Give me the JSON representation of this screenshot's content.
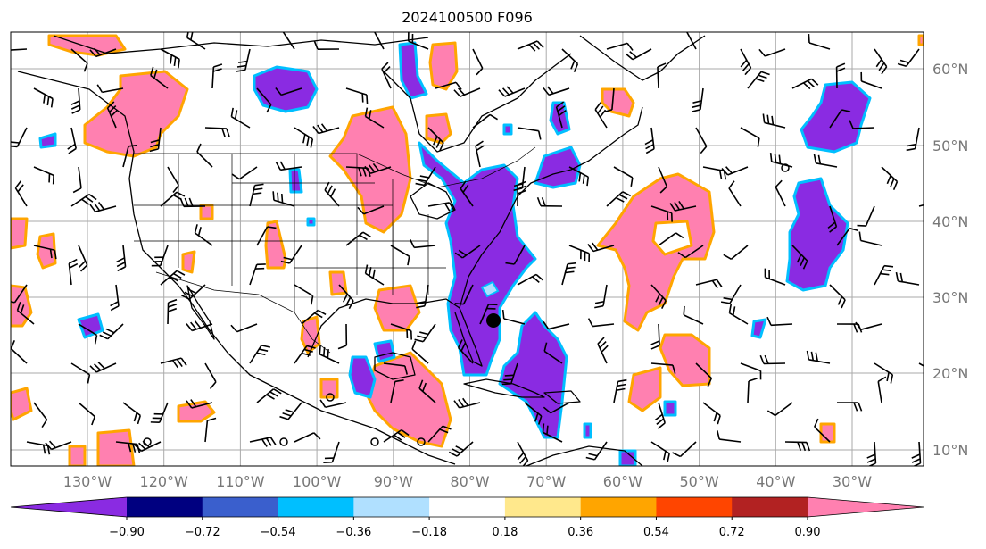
{
  "title": "2024100500 F096",
  "lat_ticks": [
    "60°N",
    "50°N",
    "40°N",
    "30°N",
    "20°N",
    "10°N"
  ],
  "lon_ticks": [
    "130°W",
    "120°W",
    "110°W",
    "100°W",
    "90°W",
    "80°W",
    "70°W",
    "60°W",
    "50°W",
    "40°W",
    "30°W"
  ],
  "colorbar": {
    "tick_labels": [
      "−0.90",
      "−0.72",
      "−0.54",
      "−0.36",
      "−0.18",
      "0.18",
      "0.36",
      "0.54",
      "0.72",
      "0.90"
    ],
    "colors": [
      "#8a2be2",
      "#000080",
      "#3a5fcd",
      "#00bfff",
      "#b0e0ff",
      "#ffffff",
      "#ffe88c",
      "#ffa500",
      "#ff4500",
      "#b22222",
      "#ff80b0"
    ]
  },
  "colors": {
    "negative_fill": "#8a2be2",
    "positive_fill": "#ff80b0",
    "positive_outline": "#ffa500",
    "negative_outline": "#00bfff",
    "gridline": "#aaaaaa",
    "coastline": "#000000"
  },
  "storm_marker": {
    "label": "",
    "lon": -77,
    "lat": 27
  }
}
